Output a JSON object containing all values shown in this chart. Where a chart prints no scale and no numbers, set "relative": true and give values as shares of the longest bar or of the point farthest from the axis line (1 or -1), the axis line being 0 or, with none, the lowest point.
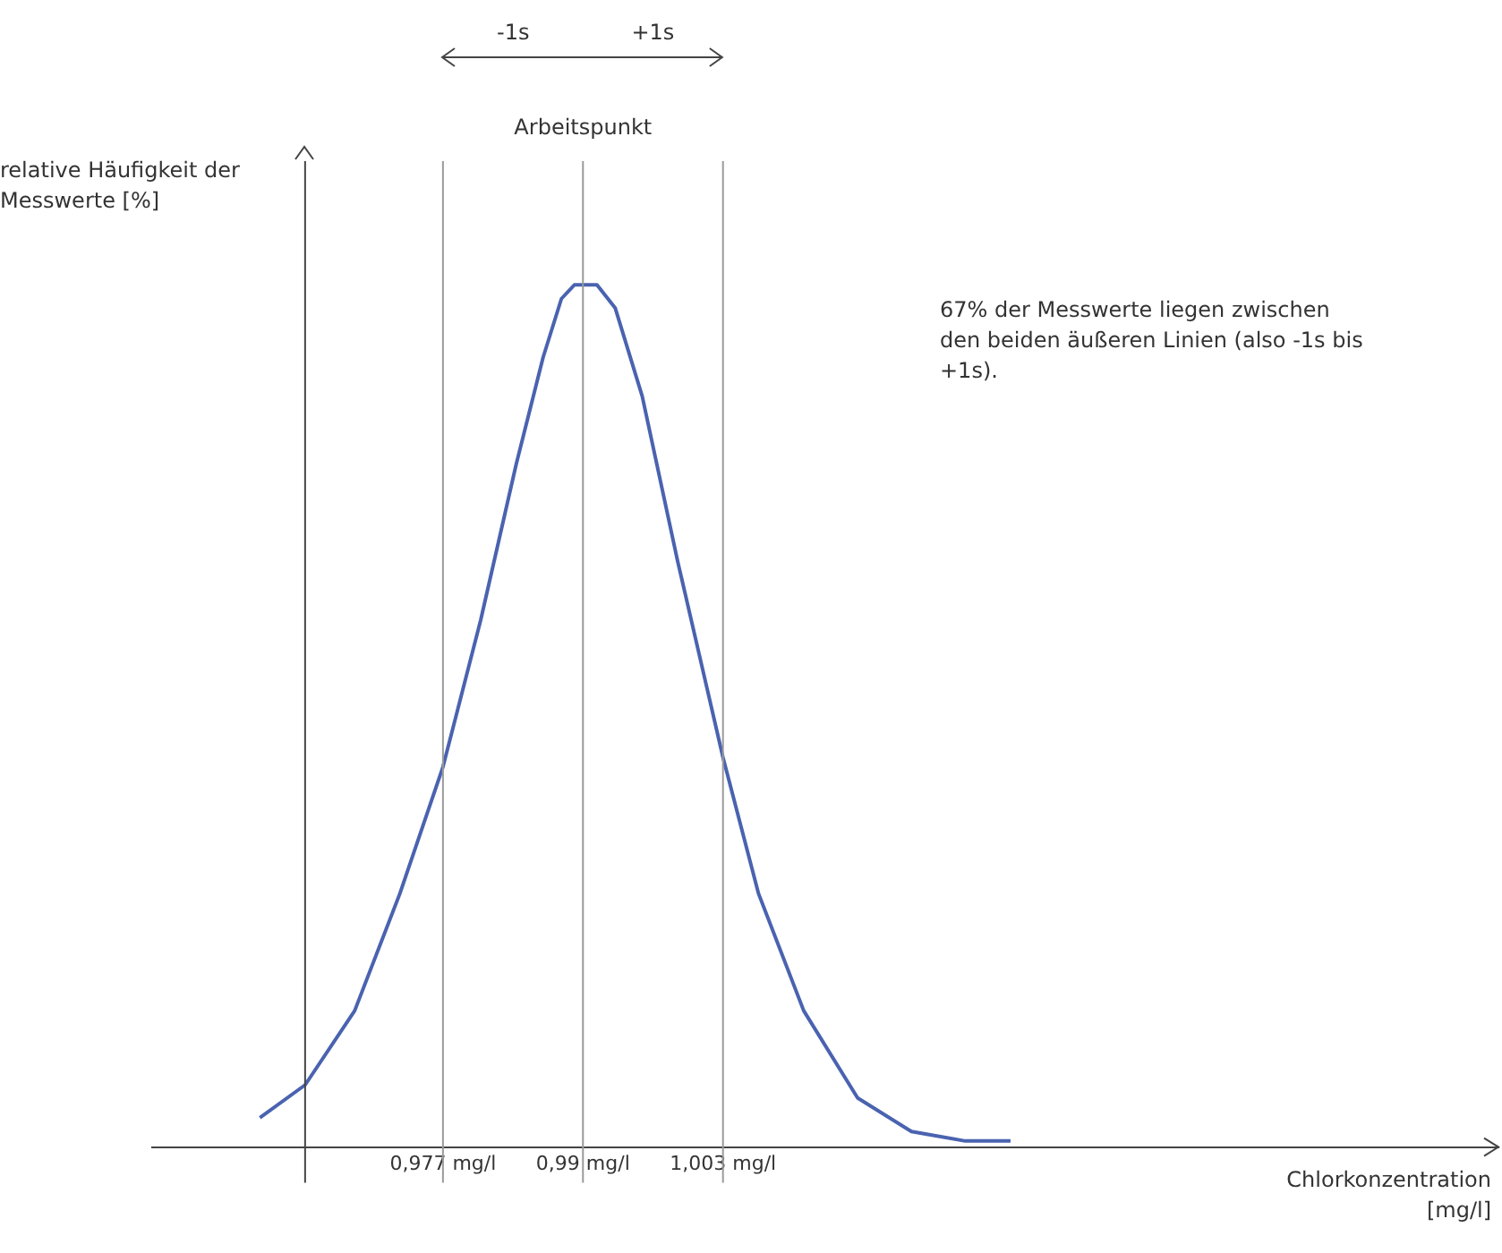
{
  "chart_data": {
    "type": "line",
    "relative": true,
    "xlabel": "Chlorkonzentration [mg/l]",
    "ylabel": "relative Häufigkeit der Messwerte [%]",
    "x": [
      0.96,
      0.9642,
      0.9688,
      0.973,
      0.977,
      0.9805,
      0.9838,
      0.9863,
      0.988,
      0.9892,
      0.9913,
      0.993,
      0.9955,
      0.9988,
      1.003,
      1.0063,
      1.0105,
      1.0155,
      1.0205,
      1.0255,
      1.0297
    ],
    "series": [
      {
        "color": "#4a63b0",
        "values": [
          0.034,
          0.072,
          0.158,
          0.294,
          0.441,
          0.611,
          0.792,
          0.916,
          0.984,
          1.0,
          1.0,
          0.973,
          0.871,
          0.679,
          0.452,
          0.294,
          0.158,
          0.057,
          0.018,
          0.007,
          0.007
        ]
      }
    ],
    "xlim": [
      0.95,
      1.075
    ],
    "xticks": [
      {
        "value": 0.977,
        "label": "0,977 mg/l"
      },
      {
        "value": 0.99,
        "label": "0,99 mg/l"
      },
      {
        "value": 1.003,
        "label": "1,003 mg/l"
      }
    ],
    "ref_lines": [
      {
        "axis": "x",
        "value": 0.9642,
        "color": "#444444"
      },
      {
        "axis": "x",
        "value": 0.977,
        "color": "#9a9a9a"
      },
      {
        "axis": "x",
        "value": 0.99,
        "label": "Arbeitspunkt",
        "color": "#9a9a9a"
      },
      {
        "axis": "x",
        "value": 1.003,
        "color": "#9a9a9a"
      }
    ],
    "annotations": [
      "-1s",
      "+1s",
      "67% der Messwerte liegen zwischen den beiden äußeren Linien (also -1s bis +1s)."
    ],
    "grid": false,
    "legend": false,
    "marker": "none",
    "line_style": "solid"
  }
}
